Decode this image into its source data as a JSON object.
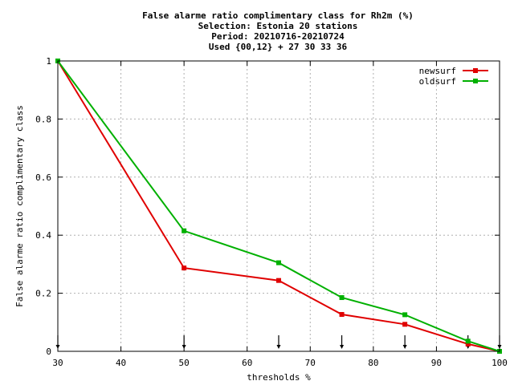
{
  "chart_data": {
    "type": "line",
    "title_lines": [
      "False alarme ratio complimentary class  for Rh2m (%)",
      "Selection: Estonia     20 stations",
      "Period: 20210716-20210724",
      "Used {00,12} + 27 30 33 36"
    ],
    "xlabel": "thresholds %",
    "ylabel": "False alarme ratio complimentary class",
    "xlim": [
      30,
      100
    ],
    "ylim": [
      0,
      1
    ],
    "x_ticks": [
      "30",
      "40",
      "50",
      "60",
      "70",
      "80",
      "90",
      "100"
    ],
    "x_tick_values": [
      30,
      40,
      50,
      60,
      70,
      80,
      90,
      100
    ],
    "y_ticks": [
      "0",
      "0.2",
      "0.4",
      "0.6",
      "0.8",
      "1"
    ],
    "y_tick_values": [
      0,
      0.2,
      0.4,
      0.6,
      0.8,
      1
    ],
    "grid": true,
    "legend_position": "top-right",
    "threshold_markers": [
      30,
      50,
      65,
      75,
      85,
      95,
      100
    ],
    "x": [
      30,
      50,
      65,
      75,
      85,
      95,
      100
    ],
    "series": [
      {
        "name": "newsurf",
        "color": "#e00000",
        "values": [
          1.0,
          0.287,
          0.244,
          0.127,
          0.093,
          0.025,
          0.0
        ]
      },
      {
        "name": "oldsurf",
        "color": "#00b000",
        "values": [
          1.0,
          0.415,
          0.305,
          0.185,
          0.126,
          0.035,
          0.0
        ]
      }
    ]
  }
}
